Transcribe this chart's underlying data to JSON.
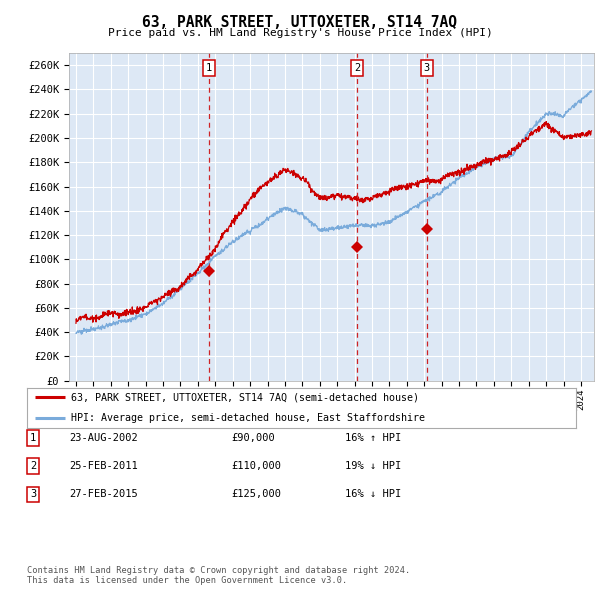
{
  "title": "63, PARK STREET, UTTOXETER, ST14 7AQ",
  "subtitle": "Price paid vs. HM Land Registry's House Price Index (HPI)",
  "legend_line1": "63, PARK STREET, UTTOXETER, ST14 7AQ (semi-detached house)",
  "legend_line2": "HPI: Average price, semi-detached house, East Staffordshire",
  "footer_line1": "Contains HM Land Registry data © Crown copyright and database right 2024.",
  "footer_line2": "This data is licensed under the Open Government Licence v3.0.",
  "transactions": [
    {
      "num": 1,
      "date": "23-AUG-2002",
      "price": 90000,
      "pct": "16%",
      "dir": "↑"
    },
    {
      "num": 2,
      "date": "25-FEB-2011",
      "price": 110000,
      "pct": "19%",
      "dir": "↓"
    },
    {
      "num": 3,
      "date": "27-FEB-2015",
      "price": 125000,
      "pct": "16%",
      "dir": "↓"
    }
  ],
  "transaction_dates_decimal": [
    2002.644,
    2011.153,
    2015.153
  ],
  "transaction_prices": [
    90000,
    110000,
    125000
  ],
  "ylim": [
    0,
    270000
  ],
  "ytick_values": [
    0,
    20000,
    40000,
    60000,
    80000,
    100000,
    120000,
    140000,
    160000,
    180000,
    200000,
    220000,
    240000,
    260000
  ],
  "background_color": "#dde8f5",
  "line_color_red": "#cc0000",
  "line_color_blue": "#7aabdb",
  "grid_color": "#ffffff",
  "vline_color": "#cc0000",
  "hpi_base_x": [
    1995,
    1996,
    1997,
    1998,
    1999,
    2000,
    2001,
    2002,
    2003,
    2004,
    2005,
    2006,
    2007,
    2008,
    2009,
    2010,
    2011,
    2012,
    2013,
    2014,
    2015,
    2016,
    2017,
    2018,
    2019,
    2020,
    2021,
    2022,
    2023,
    2024,
    2024.5
  ],
  "hpi_base_y": [
    40000,
    43000,
    46000,
    50000,
    56000,
    64000,
    76000,
    90000,
    105000,
    118000,
    128000,
    138000,
    145000,
    140000,
    128000,
    130000,
    133000,
    132000,
    135000,
    140000,
    148000,
    158000,
    168000,
    178000,
    183000,
    185000,
    205000,
    222000,
    218000,
    230000,
    238000
  ],
  "price_base_x": [
    1995,
    1996,
    1997,
    1998,
    1999,
    2000,
    2001,
    2002,
    2003,
    2004,
    2005,
    2006,
    2007,
    2008,
    2009,
    2010,
    2011,
    2012,
    2013,
    2014,
    2015,
    2016,
    2017,
    2018,
    2019,
    2020,
    2021,
    2022,
    2023,
    2024,
    2024.5
  ],
  "price_base_y": [
    50000,
    52000,
    55000,
    58000,
    64000,
    70000,
    80000,
    95000,
    110000,
    130000,
    148000,
    163000,
    172000,
    165000,
    148000,
    152000,
    148000,
    148000,
    150000,
    155000,
    160000,
    165000,
    173000,
    180000,
    184000,
    188000,
    200000,
    210000,
    198000,
    200000,
    205000
  ]
}
